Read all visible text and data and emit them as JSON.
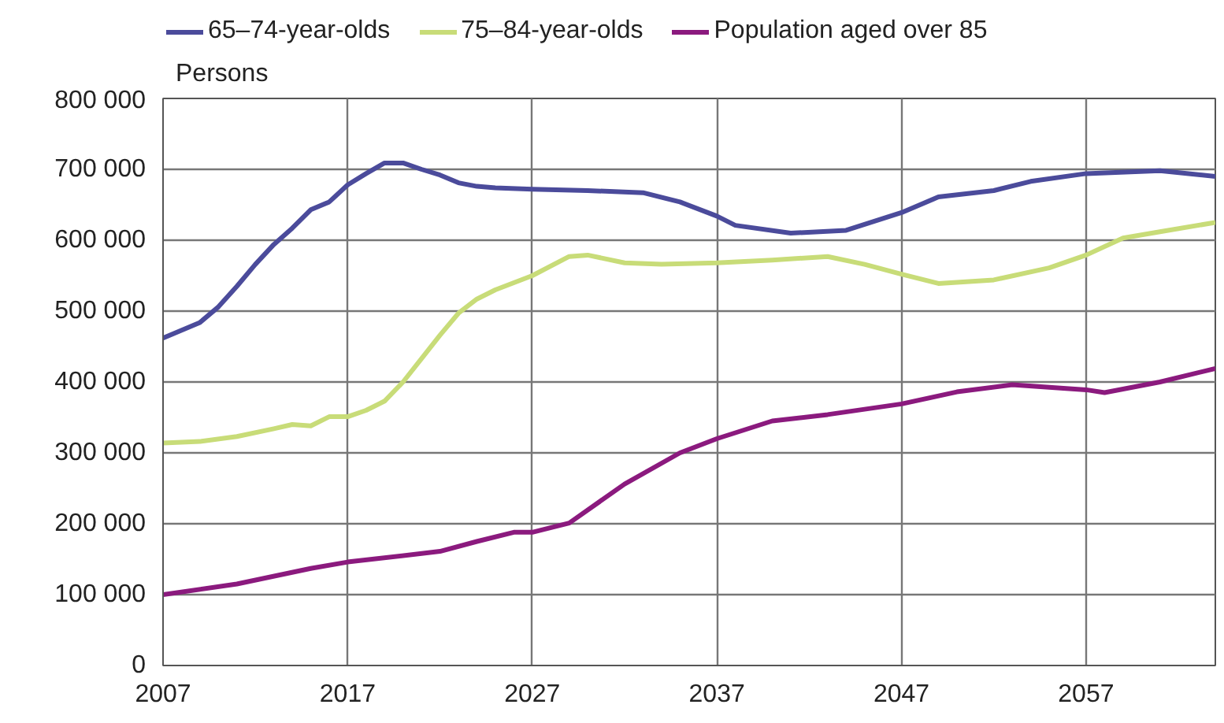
{
  "chart_data": {
    "type": "line",
    "ylabel": "Persons",
    "xlim": [
      2007,
      2064
    ],
    "xticks": [
      2007,
      2017,
      2027,
      2037,
      2047,
      2057
    ],
    "ylim": [
      0,
      800000
    ],
    "yticks": [
      {
        "value": 0,
        "label": "0"
      },
      {
        "value": 100000,
        "label": "100 000"
      },
      {
        "value": 200000,
        "label": "200 000"
      },
      {
        "value": 300000,
        "label": "300 000"
      },
      {
        "value": 400000,
        "label": "400 000"
      },
      {
        "value": 500000,
        "label": "500 000"
      },
      {
        "value": 600000,
        "label": "600 000"
      },
      {
        "value": 700000,
        "label": "700 000"
      },
      {
        "value": 800000,
        "label": "800 000"
      }
    ],
    "grid": true,
    "legend": "top",
    "line_style": "solid",
    "series": [
      {
        "name": "65–74-year-olds",
        "color": "#4b4b9b",
        "x": [
          2007,
          2009,
          2010,
          2011,
          2012,
          2013,
          2014,
          2015,
          2016,
          2017,
          2018,
          2019,
          2020,
          2021,
          2022,
          2023,
          2024,
          2025,
          2027,
          2030,
          2033,
          2035,
          2037,
          2038,
          2041,
          2044,
          2047,
          2049,
          2052,
          2054,
          2057,
          2061,
          2064
        ],
        "values": [
          462000,
          484000,
          506000,
          535000,
          566000,
          594000,
          617000,
          643000,
          654000,
          678000,
          694000,
          709000,
          709000,
          700000,
          692000,
          681000,
          676000,
          674000,
          672000,
          670000,
          667000,
          654000,
          634000,
          621000,
          610000,
          614000,
          639000,
          661000,
          670000,
          683000,
          694000,
          698000,
          690000
        ]
      },
      {
        "name": "75–84-year-olds",
        "color": "#c8dc78",
        "x": [
          2007,
          2009,
          2011,
          2013,
          2014,
          2015,
          2016,
          2017,
          2018,
          2019,
          2020,
          2021,
          2022,
          2023,
          2024,
          2025,
          2026,
          2027,
          2029,
          2030,
          2032,
          2034,
          2037,
          2040,
          2043,
          2045,
          2047,
          2049,
          2052,
          2055,
          2057,
          2059,
          2061,
          2064
        ],
        "values": [
          314000,
          316000,
          323000,
          334000,
          340000,
          338000,
          351000,
          351000,
          360000,
          373000,
          400000,
          433000,
          466000,
          497000,
          517000,
          530000,
          540000,
          550000,
          577000,
          579000,
          568000,
          566000,
          568000,
          572000,
          577000,
          566000,
          552000,
          539000,
          544000,
          561000,
          579000,
          603000,
          612000,
          625000
        ]
      },
      {
        "name": "Population aged over 85",
        "color": "#8b1a7e",
        "x": [
          2007,
          2011,
          2015,
          2017,
          2022,
          2024,
          2026,
          2027,
          2029,
          2032,
          2035,
          2037,
          2040,
          2043,
          2047,
          2050,
          2053,
          2057,
          2058,
          2061,
          2064
        ],
        "values": [
          100000,
          115000,
          137000,
          146000,
          161000,
          175000,
          188000,
          188000,
          201000,
          256000,
          300000,
          320000,
          345000,
          354000,
          369000,
          386000,
          396000,
          389000,
          385000,
          400000,
          419000
        ]
      }
    ]
  }
}
